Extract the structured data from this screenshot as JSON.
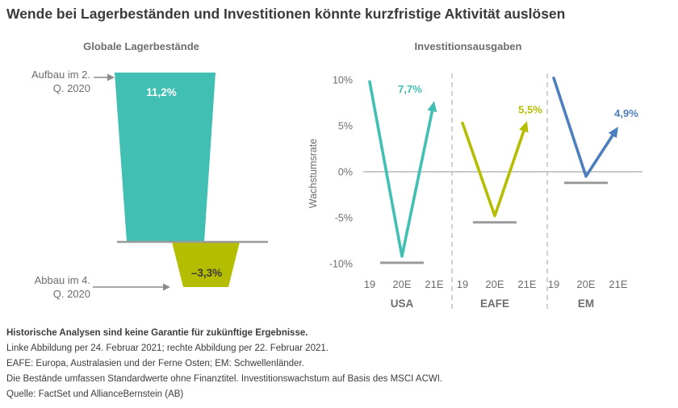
{
  "title": "Wende bei Lagerbeständen und Investitionen könnte kurzfristige Aktivität auslösen",
  "colors": {
    "teal": "#41BFB3",
    "olive": "#B5BD00",
    "blue": "#4D7EBE",
    "axis_gray": "#9a9a9a",
    "annotation_gray": "#8c8c8c",
    "text_dark": "#3a3a3a",
    "text_gray": "#6d6d6d"
  },
  "left_chart": {
    "title": "Globale Lagerbestände",
    "annotation_top": "Aufbau im 2. Q. 2020",
    "annotation_bottom": "Abbau im 4. Q. 2020"
  },
  "right_chart": {
    "title": "Investitionsausgaben",
    "ylabel": "Wachstumsrate"
  },
  "footnotes": [
    "Historische Analysen sind keine Garantie für zukünftige Ergebnisse.",
    "Linke Abbildung per 24. Februar 2021; rechte Abbildung per 22. Februar 2021.",
    "EAFE: Europa, Australasien und der Ferne Osten; EM: Schwellenländer.",
    "Die Bestände umfassen Standardwerte ohne Finanztitel. Investitionswachstum auf Basis des MSCI ACWI.",
    "Quelle: FactSet und AllianceBernstein (AB)"
  ],
  "chart_data": [
    {
      "type": "bar",
      "title": "Globale Lagerbestände",
      "categories": [
        "Aufbau im 2. Q. 2020",
        "Abbau im 4. Q. 2020"
      ],
      "values": [
        11.2,
        -3.3
      ],
      "value_labels": [
        "11,2%",
        "–3,3%"
      ],
      "colors": [
        "#41BFB3",
        "#B5BD00"
      ]
    },
    {
      "type": "line",
      "title": "Investitionsausgaben",
      "ylabel": "Wachstumsrate",
      "ylim": [
        -10,
        10
      ],
      "ytick_values": [
        10,
        5,
        0,
        -5,
        -10
      ],
      "ytick_labels": [
        "10%",
        "5%",
        "0%",
        "-5%",
        "-10%"
      ],
      "x": [
        "19",
        "20E",
        "21E"
      ],
      "groups": [
        "USA",
        "EAFE",
        "EM"
      ],
      "series": [
        {
          "name": "USA",
          "color": "#41BFB3",
          "values": [
            9.8,
            -9.2,
            7.7
          ],
          "end_label": "7,7%"
        },
        {
          "name": "EAFE",
          "color": "#B5BD00",
          "values": [
            5.3,
            -4.8,
            5.5
          ],
          "end_label": "5,5%"
        },
        {
          "name": "EM",
          "color": "#4D7EBE",
          "values": [
            10.2,
            -0.5,
            4.9
          ],
          "end_label": "4,9%"
        }
      ],
      "legend_position": "none",
      "grid": false
    }
  ]
}
